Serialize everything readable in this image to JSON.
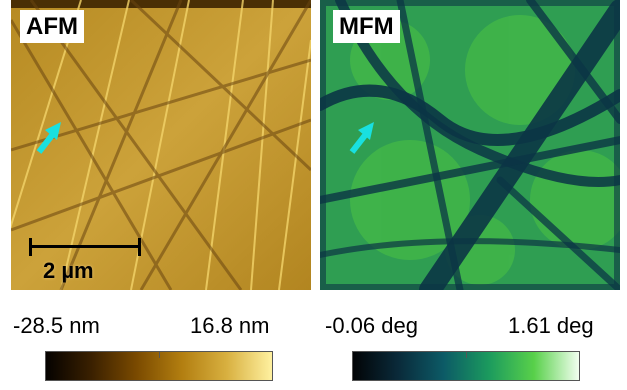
{
  "afm": {
    "label": "AFM",
    "scale_bar_label": "2 µm",
    "colorbar_min": "-28.5 nm",
    "colorbar_max": "16.8 nm"
  },
  "mfm": {
    "label": "MFM",
    "colorbar_min": "-0.06 deg",
    "colorbar_max": "1.61 deg"
  },
  "colors": {
    "arrow": "#19e0e0",
    "afm_base": "#c8a030",
    "mfm_base": "#2f9e52"
  }
}
